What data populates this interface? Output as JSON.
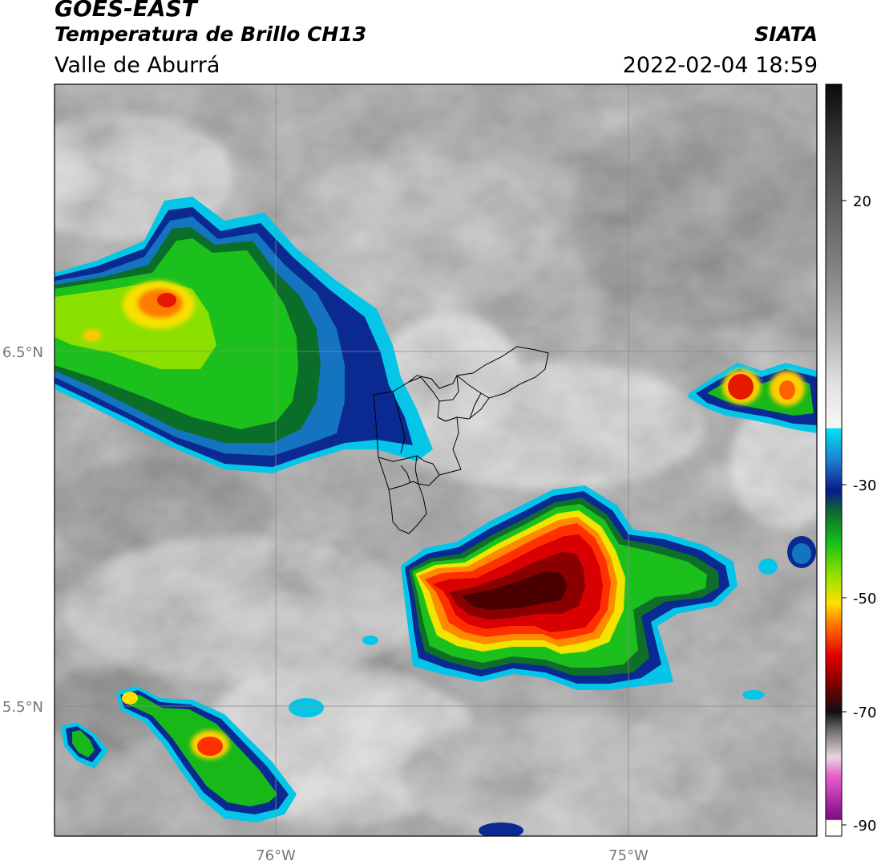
{
  "header": {
    "satellite": "GOES-EAST",
    "product": "Temperatura de Brillo CH13",
    "region": "Valle de Aburrá",
    "agency": "SIATA",
    "timestamp": "2022-02-04 18:59"
  },
  "map": {
    "lon_labels": [
      "76°W",
      "75°W"
    ],
    "lat_labels": [
      "6.5°N",
      "5.5°N"
    ],
    "gridline_color": "#888888",
    "boundary_color": "#000000"
  },
  "colorbar": {
    "ticks": [
      "20",
      "-30",
      "-50",
      "-70",
      "-90"
    ],
    "colors": {
      "warm_gray_top": "#111111",
      "light_gray": "#f2f2f2",
      "cyan": "#00d8f0",
      "deep_blue": "#0a1e8c",
      "green": "#18b818",
      "yellow": "#ffe800",
      "red": "#e80000",
      "dark_red": "#5a0000",
      "magenta": "#e060c0",
      "purple": "#7a147a"
    }
  }
}
